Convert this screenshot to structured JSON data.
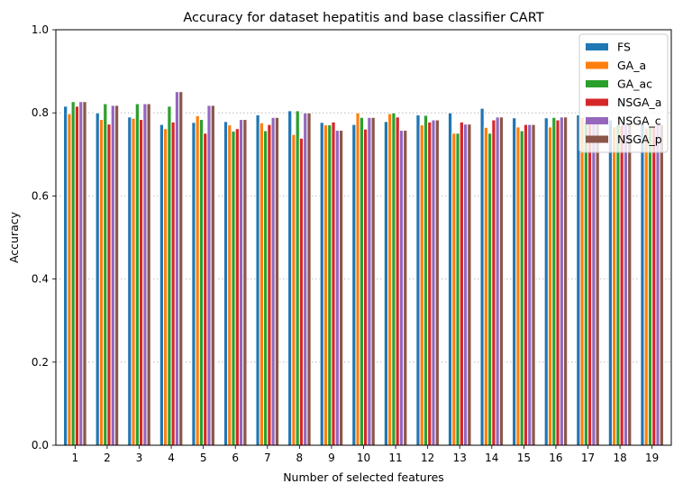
{
  "chart_data": {
    "type": "bar",
    "title": "Accuracy for dataset hepatitis and base classifier CART",
    "xlabel": "Number of selected features",
    "ylabel": "Accuracy",
    "ylim": [
      0,
      1.0
    ],
    "yticks": [
      "0.0",
      "0.2",
      "0.4",
      "0.6",
      "0.8",
      "1.0"
    ],
    "categories": [
      "1",
      "2",
      "3",
      "4",
      "5",
      "6",
      "7",
      "8",
      "9",
      "10",
      "11",
      "12",
      "13",
      "14",
      "15",
      "16",
      "17",
      "18",
      "19"
    ],
    "grid": "y-dotted",
    "legend_position": "top-right",
    "series": [
      {
        "name": "FS",
        "color": "#1f77b4",
        "values": [
          0.816,
          0.8,
          0.79,
          0.772,
          0.777,
          0.779,
          0.795,
          0.805,
          0.777,
          0.772,
          0.779,
          0.795,
          0.8,
          0.811,
          0.788,
          0.788,
          0.795,
          0.783,
          0.772
        ]
      },
      {
        "name": "GA_a",
        "color": "#ff7f0e",
        "values": [
          0.798,
          0.784,
          0.787,
          0.762,
          0.793,
          0.771,
          0.776,
          0.748,
          0.771,
          0.8,
          0.798,
          0.771,
          0.751,
          0.765,
          0.766,
          0.766,
          0.789,
          0.766,
          0.763
        ]
      },
      {
        "name": "GA_ac",
        "color": "#2ca02c",
        "values": [
          0.827,
          0.822,
          0.822,
          0.816,
          0.784,
          0.756,
          0.757,
          0.805,
          0.771,
          0.789,
          0.8,
          0.794,
          0.751,
          0.751,
          0.757,
          0.789,
          0.778,
          0.771,
          0.77
        ]
      },
      {
        "name": "NSGA_a",
        "color": "#d62728",
        "values": [
          0.816,
          0.773,
          0.784,
          0.778,
          0.751,
          0.762,
          0.772,
          0.739,
          0.778,
          0.761,
          0.79,
          0.778,
          0.778,
          0.783,
          0.772,
          0.783,
          0.778,
          0.77,
          0.77
        ]
      },
      {
        "name": "NSGA_c",
        "color": "#9467bd",
        "values": [
          0.827,
          0.818,
          0.822,
          0.851,
          0.818,
          0.784,
          0.789,
          0.8,
          0.758,
          0.789,
          0.758,
          0.783,
          0.773,
          0.79,
          0.772,
          0.79,
          0.78,
          0.772,
          0.772
        ]
      },
      {
        "name": "NSGA_p",
        "color": "#8c564b",
        "values": [
          0.827,
          0.818,
          0.822,
          0.851,
          0.818,
          0.784,
          0.789,
          0.8,
          0.758,
          0.789,
          0.758,
          0.783,
          0.773,
          0.79,
          0.772,
          0.79,
          0.78,
          0.772,
          0.772
        ]
      }
    ]
  }
}
